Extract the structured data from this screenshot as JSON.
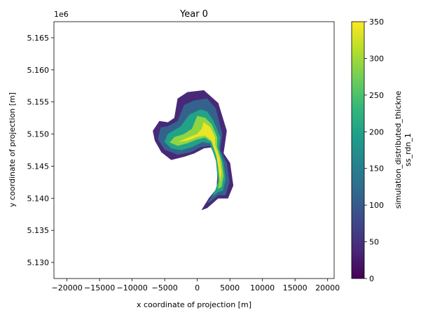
{
  "chart_data": {
    "type": "heatmap",
    "title": "Year 0",
    "xlabel": "x coordinate of projection [m]",
    "ylabel": "y coordinate of projection [m]",
    "y_offset_label": "1e6",
    "xlim": [
      -22000,
      21000
    ],
    "ylim": [
      5.1275,
      5.1675
    ],
    "x_ticks": [
      -20000,
      -15000,
      -10000,
      -5000,
      0,
      5000,
      10000,
      15000,
      20000
    ],
    "x_tick_labels": [
      "−20000",
      "−15000",
      "−10000",
      "−5000",
      "0",
      "5000",
      "10000",
      "15000",
      "20000"
    ],
    "y_ticks": [
      5.13,
      5.135,
      5.14,
      5.145,
      5.15,
      5.155,
      5.16,
      5.165
    ],
    "y_tick_labels": [
      "5.130",
      "5.135",
      "5.140",
      "5.145",
      "5.150",
      "5.155",
      "5.160",
      "5.165"
    ],
    "colorbar": {
      "label_lines": [
        "simulation_distributed_thickne",
        "ss_rdn_1"
      ],
      "min": 0,
      "max": 350,
      "ticks": [
        0,
        50,
        100,
        150,
        200,
        250,
        300,
        350
      ],
      "tick_labels": [
        "0",
        "50",
        "100",
        "150",
        "200",
        "250",
        "300",
        "350"
      ],
      "colormap": "viridis",
      "stops": [
        "#440154",
        "#482878",
        "#3e4989",
        "#31688e",
        "#26828e",
        "#1f9e89",
        "#35b779",
        "#6ece58",
        "#b5de2b",
        "#fde725"
      ]
    },
    "grid": false,
    "layers": [
      {
        "thickness": 40,
        "polygons": [
          [
            [
              -3500,
              5.1525
            ],
            [
              -3000,
              5.1555
            ],
            [
              -1500,
              5.1565
            ],
            [
              1000,
              5.1568
            ],
            [
              3200,
              5.1548
            ],
            [
              4500,
              5.1505
            ],
            [
              4000,
              5.147
            ],
            [
              5000,
              5.1455
            ],
            [
              5500,
              5.142
            ],
            [
              4700,
              5.14
            ],
            [
              3200,
              5.14
            ],
            [
              1500,
              5.1385
            ],
            [
              700,
              5.1382
            ],
            [
              1800,
              5.14
            ],
            [
              3000,
              5.1415
            ],
            [
              3200,
              5.146
            ],
            [
              2500,
              5.148
            ],
            [
              1000,
              5.1478
            ],
            [
              -500,
              5.147
            ],
            [
              -2000,
              5.1465
            ],
            [
              -4000,
              5.146
            ],
            [
              -5500,
              5.1472
            ],
            [
              -6500,
              5.149
            ],
            [
              -6800,
              5.1505
            ],
            [
              -5800,
              5.152
            ],
            [
              -4500,
              5.1518
            ]
          ]
        ]
      },
      {
        "thickness": 110,
        "polygons": [
          [
            [
              -3000,
              5.152
            ],
            [
              -2000,
              5.1545
            ],
            [
              -500,
              5.1552
            ],
            [
              1500,
              5.1555
            ],
            [
              2800,
              5.154
            ],
            [
              3800,
              5.15
            ],
            [
              3500,
              5.1475
            ],
            [
              4500,
              5.1455
            ],
            [
              4900,
              5.1425
            ],
            [
              4300,
              5.1405
            ],
            [
              3200,
              5.1405
            ],
            [
              2000,
              5.1395
            ],
            [
              1500,
              5.1393
            ],
            [
              2400,
              5.1405
            ],
            [
              3200,
              5.142
            ],
            [
              3000,
              5.146
            ],
            [
              2000,
              5.1482
            ],
            [
              500,
              5.148
            ],
            [
              -1000,
              5.1472
            ],
            [
              -3000,
              5.1468
            ],
            [
              -5000,
              5.1476
            ],
            [
              -6000,
              5.1492
            ],
            [
              -5600,
              5.151
            ],
            [
              -4500,
              5.1512
            ]
          ]
        ]
      },
      {
        "thickness": 200,
        "polygons": [
          [
            [
              -2500,
              5.1512
            ],
            [
              -1200,
              5.153
            ],
            [
              500,
              5.1538
            ],
            [
              1500,
              5.1535
            ],
            [
              2500,
              5.152
            ],
            [
              3500,
              5.1495
            ],
            [
              3300,
              5.1478
            ],
            [
              4000,
              5.1455
            ],
            [
              4300,
              5.143
            ],
            [
              3900,
              5.1412
            ],
            [
              3200,
              5.141
            ],
            [
              2300,
              5.1403
            ],
            [
              2800,
              5.1413
            ],
            [
              3200,
              5.1425
            ],
            [
              2900,
              5.1458
            ],
            [
              2000,
              5.1486
            ],
            [
              800,
              5.1488
            ],
            [
              -800,
              5.148
            ],
            [
              -2500,
              5.1475
            ],
            [
              -4000,
              5.1478
            ],
            [
              -5000,
              5.1488
            ],
            [
              -4500,
              5.15
            ]
          ]
        ]
      },
      {
        "thickness": 290,
        "polygons": [
          [
            [
              0,
              5.1528
            ],
            [
              1200,
              5.1525
            ],
            [
              2200,
              5.1515
            ],
            [
              3000,
              5.1495
            ],
            [
              3000,
              5.148
            ],
            [
              3700,
              5.1458
            ],
            [
              4000,
              5.1435
            ],
            [
              3700,
              5.1418
            ],
            [
              3200,
              5.1415
            ],
            [
              3400,
              5.143
            ],
            [
              3100,
              5.146
            ],
            [
              2200,
              5.1488
            ],
            [
              1200,
              5.1495
            ],
            [
              0,
              5.1492
            ],
            [
              -1500,
              5.1486
            ],
            [
              -3000,
              5.1482
            ],
            [
              -4200,
              5.1487
            ],
            [
              -3500,
              5.1495
            ],
            [
              -2000,
              5.15
            ],
            [
              -800,
              5.1508
            ]
          ]
        ]
      },
      {
        "thickness": 340,
        "polygons": [
          [
            [
              1000,
              5.1518
            ],
            [
              2000,
              5.151
            ],
            [
              2700,
              5.1495
            ],
            [
              2700,
              5.1483
            ],
            [
              3400,
              5.1462
            ],
            [
              3700,
              5.144
            ],
            [
              3500,
              5.1428
            ],
            [
              3300,
              5.1445
            ],
            [
              2900,
              5.147
            ],
            [
              2200,
              5.149
            ],
            [
              1200,
              5.1498
            ],
            [
              0,
              5.1496
            ],
            [
              -1500,
              5.149
            ],
            [
              -2800,
              5.1488
            ],
            [
              -1500,
              5.1494
            ],
            [
              0,
              5.15
            ],
            [
              700,
              5.1508
            ]
          ]
        ]
      }
    ]
  }
}
